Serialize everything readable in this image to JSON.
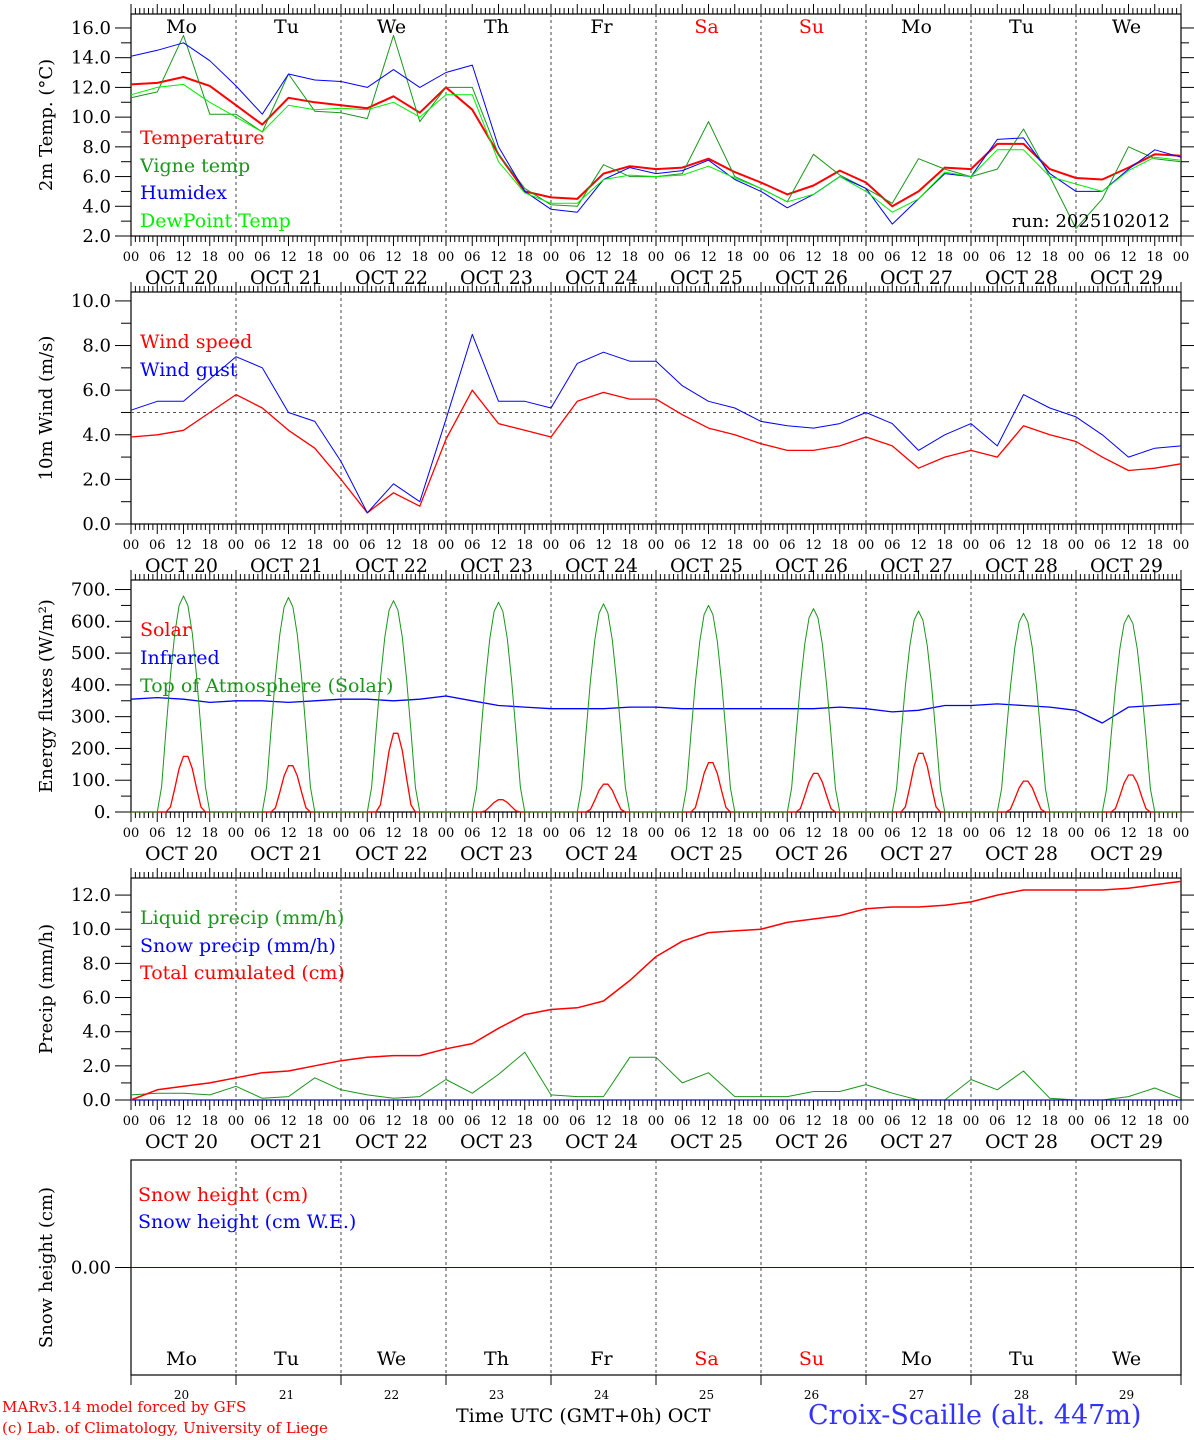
{
  "chart_data": [
    {
      "type": "line",
      "ylabel": "2m Temp. (°C)",
      "ylim": [
        2,
        16.94
      ],
      "yticks": [
        "2.0",
        "4.0",
        "6.0",
        "8.0",
        "10.0",
        "12.0",
        "14.0",
        "16.0"
      ],
      "step_hours": 6,
      "series": [
        {
          "name": "Temperature",
          "color": "#ff0000",
          "width": 2,
          "values": [
            12.2,
            12.3,
            12.7,
            12.1,
            10.8,
            9.5,
            11.3,
            11.0,
            10.8,
            10.6,
            11.4,
            10.3,
            12.0,
            10.5,
            7.5,
            5.0,
            4.6,
            4.5,
            6.2,
            6.7,
            6.5,
            6.6,
            7.2,
            6.3,
            5.6,
            4.8,
            5.4,
            6.4,
            5.6,
            4.0,
            5.0,
            6.6,
            6.5,
            8.2,
            8.2,
            6.5,
            5.9,
            5.8,
            6.6,
            7.5,
            7.4
          ]
        },
        {
          "name": "Vigne temp",
          "color": "#1a961a",
          "width": 1,
          "values": [
            11.3,
            11.7,
            15.5,
            10.2,
            10.2,
            9.0,
            12.9,
            10.4,
            10.3,
            9.9,
            15.5,
            9.7,
            12.0,
            12.0,
            7.5,
            5.2,
            4.1,
            4.0,
            6.8,
            6.0,
            6.0,
            6.2,
            9.7,
            6.0,
            5.2,
            4.3,
            7.5,
            6.1,
            5.2,
            4.2,
            7.2,
            6.5,
            6.0,
            6.5,
            9.2,
            6.0,
            2.5,
            4.5,
            8.0,
            7.2,
            7.0
          ]
        },
        {
          "name": "Humidex",
          "color": "#0000ff",
          "width": 1,
          "values": [
            14.1,
            14.5,
            15.0,
            13.8,
            12.1,
            10.2,
            12.9,
            12.5,
            12.4,
            12.0,
            13.2,
            12.0,
            13.0,
            13.5,
            8.0,
            5.0,
            3.8,
            3.6,
            5.8,
            6.6,
            6.2,
            6.4,
            7.1,
            5.8,
            5.0,
            3.9,
            4.8,
            6.0,
            5.2,
            2.8,
            4.5,
            6.2,
            6.0,
            8.5,
            8.6,
            6.2,
            5.0,
            5.0,
            6.5,
            7.8,
            7.3
          ]
        },
        {
          "name": "DewPoint Temp",
          "color": "#00ee00",
          "width": 1,
          "values": [
            11.5,
            12.0,
            12.2,
            11.0,
            10.0,
            9.0,
            10.8,
            10.5,
            10.6,
            10.5,
            11.0,
            10.0,
            11.5,
            11.5,
            7.0,
            4.9,
            4.2,
            4.2,
            5.8,
            6.1,
            6.0,
            6.1,
            6.7,
            5.9,
            5.2,
            4.3,
            4.8,
            6.0,
            5.0,
            3.6,
            4.5,
            6.3,
            6.0,
            7.8,
            7.8,
            6.0,
            5.5,
            5.0,
            6.4,
            7.3,
            7.1
          ]
        }
      ],
      "annotation": "run: 2025102012"
    },
    {
      "type": "line",
      "ylabel": "10m Wind (m/s)",
      "ylim": [
        0,
        10.4
      ],
      "yticks": [
        "0.0",
        "2.0",
        "4.0",
        "6.0",
        "8.0",
        "10.0"
      ],
      "step_hours": 6,
      "reference_line": 5,
      "series": [
        {
          "name": "Wind speed",
          "color": "#ff0000",
          "width": 1.3,
          "values": [
            3.9,
            4.0,
            4.2,
            5.0,
            5.8,
            5.2,
            4.2,
            3.4,
            2.0,
            0.5,
            1.4,
            0.8,
            3.8,
            6.0,
            4.5,
            4.2,
            3.9,
            5.5,
            5.9,
            5.6,
            5.6,
            4.9,
            4.3,
            4.0,
            3.6,
            3.3,
            3.3,
            3.5,
            3.9,
            3.5,
            2.5,
            3.0,
            3.3,
            3.0,
            4.4,
            4.0,
            3.7,
            3.0,
            2.4,
            2.5,
            2.7
          ]
        },
        {
          "name": "Wind gust",
          "color": "#0000ff",
          "width": 1,
          "values": [
            5.1,
            5.5,
            5.5,
            6.5,
            7.5,
            7.0,
            5.0,
            4.6,
            2.8,
            0.5,
            1.8,
            1.0,
            4.7,
            8.5,
            5.5,
            5.5,
            5.2,
            7.2,
            7.7,
            7.3,
            7.3,
            6.2,
            5.5,
            5.2,
            4.6,
            4.4,
            4.3,
            4.5,
            5.0,
            4.5,
            3.3,
            4.0,
            4.5,
            3.5,
            5.8,
            5.2,
            4.8,
            4.0,
            3.0,
            3.4,
            3.5
          ]
        }
      ]
    },
    {
      "type": "line",
      "ylabel": "Energy fluxes (W/m²)",
      "ylim": [
        0,
        730
      ],
      "yticks": [
        "0.",
        "100.",
        "200.",
        "300.",
        "400.",
        "500.",
        "600.",
        "700."
      ],
      "series": [
        {
          "name": "Solar",
          "color": "#ff0000",
          "width": 1.3,
          "daily_peaks": [
            180,
            150,
            255,
            40,
            90,
            160,
            125,
            190,
            100,
            120
          ]
        },
        {
          "name": "Infrared",
          "color": "#0000ff",
          "width": 1.3,
          "step_hours": 6,
          "values": [
            355,
            360,
            355,
            345,
            350,
            350,
            345,
            350,
            355,
            355,
            350,
            355,
            365,
            350,
            335,
            330,
            325,
            325,
            325,
            330,
            330,
            325,
            325,
            325,
            325,
            325,
            325,
            330,
            325,
            315,
            320,
            335,
            335,
            340,
            335,
            330,
            320,
            280,
            330,
            335,
            340
          ]
        },
        {
          "name": "Top of Atmosphere (Solar)",
          "color": "#1a961a",
          "width": 1,
          "daily_peaks": [
            680,
            675,
            665,
            660,
            655,
            650,
            640,
            632,
            625,
            620
          ]
        }
      ]
    },
    {
      "type": "line",
      "ylabel": "Precip (mm/h)",
      "ylim": [
        0,
        13
      ],
      "yticks": [
        "0.0",
        "2.0",
        "4.0",
        "6.0",
        "8.0",
        "10.0",
        "12.0"
      ],
      "step_hours": 6,
      "series": [
        {
          "name": "Liquid precip (mm/h)",
          "color": "#1a961a",
          "width": 1,
          "values": [
            0.3,
            0.4,
            0.4,
            0.3,
            0.8,
            0.1,
            0.2,
            1.3,
            0.6,
            0.3,
            0.1,
            0.2,
            1.2,
            0.4,
            1.5,
            2.8,
            0.3,
            0.2,
            0.2,
            2.5,
            2.5,
            1.0,
            1.6,
            0.2,
            0.2,
            0.2,
            0.5,
            0.5,
            0.9,
            0.4,
            0,
            0,
            1.2,
            0.6,
            1.7,
            0.1,
            0,
            0,
            0.2,
            0.7,
            0.1
          ]
        },
        {
          "name": "Snow precip (mm/h)",
          "color": "#0000ff",
          "width": 1,
          "values": [
            0,
            0,
            0,
            0,
            0,
            0,
            0,
            0,
            0,
            0,
            0,
            0,
            0,
            0,
            0,
            0,
            0,
            0,
            0,
            0,
            0,
            0,
            0,
            0,
            0,
            0,
            0,
            0,
            0,
            0,
            0,
            0,
            0,
            0,
            0,
            0,
            0,
            0,
            0,
            0,
            0
          ]
        },
        {
          "name": "Total cumulated (cm)",
          "color": "#ff0000",
          "width": 1.5,
          "values": [
            0,
            0.6,
            0.8,
            1.0,
            1.3,
            1.6,
            1.7,
            2.0,
            2.3,
            2.5,
            2.6,
            2.6,
            3.0,
            3.3,
            4.2,
            5.0,
            5.3,
            5.4,
            5.8,
            7.0,
            8.4,
            9.3,
            9.8,
            9.9,
            10.0,
            10.4,
            10.6,
            10.8,
            11.2,
            11.3,
            11.3,
            11.4,
            11.6,
            12.0,
            12.3,
            12.3,
            12.3,
            12.3,
            12.4,
            12.6,
            12.8
          ]
        }
      ]
    },
    {
      "type": "line",
      "ylabel": "Snow height (cm)",
      "ylim": [
        -1,
        1
      ],
      "yticks": [
        "0.00"
      ],
      "step_hours": 240,
      "series": [
        {
          "name": "Snow height (cm)",
          "color": "#ff0000",
          "width": 1,
          "values": [
            0,
            0
          ]
        },
        {
          "name": "Snow height (cm W.E.)",
          "color": "#0000ff",
          "width": 1,
          "values": [
            0,
            0
          ]
        }
      ]
    }
  ],
  "x_axis": {
    "hour_labels": [
      "00",
      "06",
      "12",
      "18"
    ],
    "date_labels": [
      "OCT 20",
      "OCT 21",
      "OCT 22",
      "OCT 23",
      "OCT 24",
      "OCT 25",
      "OCT 26",
      "OCT 27",
      "OCT 28",
      "OCT 29"
    ],
    "end_label": "00",
    "weekdays": [
      "Mo",
      "Tu",
      "We",
      "Th",
      "Fr",
      "Sa",
      "Su",
      "Mo",
      "Tu",
      "We"
    ],
    "weekend_color": "#ff0000",
    "weekend_index": [
      5,
      6
    ],
    "day_numbers": [
      "20",
      "21",
      "22",
      "23",
      "24",
      "25",
      "26",
      "27",
      "28",
      "29"
    ],
    "title": "Time UTC (GMT+0h) OCT"
  },
  "footer": {
    "credit1": "MARv3.14 model forced by GFS",
    "credit2": "(c) Lab. of Climatology, University of Liege",
    "station": "Croix-Scaille (alt. 447m)"
  }
}
